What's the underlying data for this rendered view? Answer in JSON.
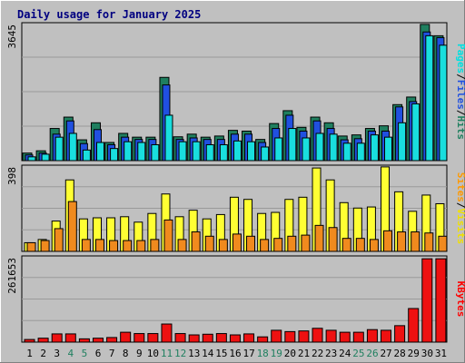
{
  "chart_data": [
    {
      "type": "bar",
      "title": "Daily usage for January 2025",
      "ylabel_parts": [
        {
          "text": "Pages",
          "color": "#00e0e0"
        },
        {
          "text": "/",
          "color": "#000000"
        },
        {
          "text": "Files",
          "color": "#2050e0"
        },
        {
          "text": "/",
          "color": "#000000"
        },
        {
          "text": "Hits",
          "color": "#208060"
        }
      ],
      "ymax_label": "3645",
      "ylim": [
        0,
        3645
      ],
      "categories": [
        "1",
        "2",
        "3",
        "4",
        "5",
        "6",
        "7",
        "8",
        "9",
        "10",
        "11",
        "12",
        "13",
        "14",
        "15",
        "16",
        "17",
        "18",
        "19",
        "20",
        "21",
        "22",
        "23",
        "24",
        "25",
        "26",
        "27",
        "28",
        "29",
        "30",
        "31"
      ],
      "weekend_days": [
        "4",
        "5",
        "11",
        "12",
        "18",
        "19",
        "25",
        "26"
      ],
      "series": [
        {
          "name": "Hits",
          "color": "#1f7f5f",
          "values": [
            200,
            260,
            850,
            1150,
            550,
            1000,
            480,
            720,
            620,
            620,
            2200,
            630,
            700,
            620,
            650,
            800,
            780,
            560,
            980,
            1320,
            880,
            1150,
            1000,
            650,
            680,
            850,
            920,
            1480,
            1680,
            3600,
            3300
          ]
        },
        {
          "name": "Files",
          "color": "#2050e0",
          "values": [
            150,
            200,
            700,
            1050,
            450,
            820,
            420,
            620,
            560,
            560,
            2000,
            560,
            600,
            560,
            560,
            700,
            700,
            480,
            850,
            1200,
            780,
            1050,
            850,
            550,
            580,
            780,
            780,
            1420,
            1560,
            3400,
            3250
          ]
        },
        {
          "name": "Pages",
          "color": "#19dede",
          "values": [
            100,
            170,
            620,
            720,
            280,
            480,
            320,
            500,
            480,
            420,
            1200,
            500,
            500,
            420,
            420,
            520,
            500,
            360,
            600,
            850,
            600,
            720,
            700,
            460,
            460,
            680,
            620,
            1000,
            1500,
            3300,
            3050
          ]
        }
      ]
    },
    {
      "type": "bar",
      "ylabel_parts": [
        {
          "text": "Sites",
          "color": "#ff9900"
        },
        {
          "text": "/",
          "color": "#000000"
        },
        {
          "text": "Visits",
          "color": "#f0e000"
        }
      ],
      "ymax_label": "398",
      "ylim": [
        0,
        398
      ],
      "categories": [
        "1",
        "2",
        "3",
        "4",
        "5",
        "6",
        "7",
        "8",
        "9",
        "10",
        "11",
        "12",
        "13",
        "14",
        "15",
        "16",
        "17",
        "18",
        "19",
        "20",
        "21",
        "22",
        "23",
        "24",
        "25",
        "26",
        "27",
        "28",
        "29",
        "30",
        "31"
      ],
      "series": [
        {
          "name": "Visits",
          "color": "#ffff33",
          "values": [
            40,
            55,
            140,
            330,
            150,
            155,
            155,
            160,
            135,
            175,
            265,
            160,
            190,
            150,
            170,
            250,
            240,
            175,
            180,
            240,
            250,
            385,
            330,
            225,
            200,
            205,
            390,
            275,
            185,
            260,
            220
          ]
        },
        {
          "name": "Sites",
          "color": "#f08a1e",
          "values": [
            40,
            50,
            105,
            230,
            55,
            55,
            50,
            50,
            50,
            55,
            145,
            55,
            90,
            70,
            55,
            80,
            70,
            55,
            60,
            70,
            75,
            120,
            110,
            60,
            60,
            55,
            95,
            90,
            90,
            85,
            70
          ]
        }
      ]
    },
    {
      "type": "bar",
      "ylabel_parts": [
        {
          "text": "KBytes",
          "color": "#ff0000"
        }
      ],
      "ymax_label": "261653",
      "ylim": [
        0,
        261653
      ],
      "categories": [
        "1",
        "2",
        "3",
        "4",
        "5",
        "6",
        "7",
        "8",
        "9",
        "10",
        "11",
        "12",
        "13",
        "14",
        "15",
        "16",
        "17",
        "18",
        "19",
        "20",
        "21",
        "22",
        "23",
        "24",
        "25",
        "26",
        "27",
        "28",
        "29",
        "30",
        "31"
      ],
      "series": [
        {
          "name": "KBytes",
          "color": "#ee1111",
          "values": [
            8000,
            12000,
            25000,
            25000,
            10000,
            12000,
            14000,
            30000,
            26000,
            26000,
            55000,
            26000,
            22000,
            24000,
            26000,
            22000,
            25000,
            16000,
            36000,
            32000,
            34000,
            42000,
            36000,
            30000,
            30000,
            38000,
            36000,
            50000,
            102000,
            253000,
            253000
          ]
        }
      ]
    }
  ]
}
